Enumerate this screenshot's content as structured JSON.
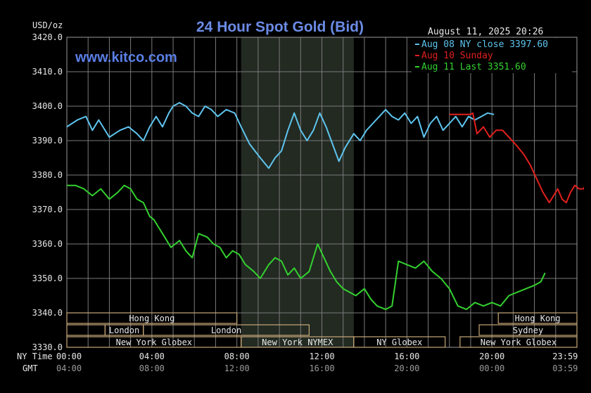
{
  "chart_data": {
    "type": "line",
    "title": "24 Hour Spot Gold (Bid)",
    "watermark": "www.kitco.com",
    "timestamp": "August 11, 2025 20:26",
    "ylabel": "USD/oz",
    "ylim": [
      3330,
      3420
    ],
    "y_ticks": [
      "3420.0",
      "3410.0",
      "3400.0",
      "3390.0",
      "3380.0",
      "3370.0",
      "3360.0",
      "3350.0",
      "3340.0",
      "3330.0"
    ],
    "y_tick_values": [
      3420,
      3410,
      3400,
      3390,
      3380,
      3370,
      3360,
      3350,
      3340,
      3330
    ],
    "xlim": [
      0,
      24
    ],
    "x_row_labels": [
      "NY Time",
      "GMT"
    ],
    "ny_ticks": [
      "00:00",
      "04:00",
      "08:00",
      "12:00",
      "16:00",
      "20:00",
      "23:59"
    ],
    "gmt_ticks": [
      "04:00",
      "08:00",
      "12:00",
      "16:00",
      "20:00",
      "00:00",
      "03:59"
    ],
    "x_tick_hours": [
      0,
      4,
      8,
      12,
      16,
      20,
      23.98
    ],
    "grid": true,
    "shaded_hours": [
      8.2,
      13.5
    ],
    "colors": {
      "blue": "#5ec4ee",
      "red": "#e0201c",
      "green": "#33d12f",
      "grid": "#7a7a7a",
      "axis_text": "#e8e8e8",
      "title": "#6b8be6",
      "session": "#c8a878"
    },
    "legend": [
      {
        "label": "Aug 08 NY close 3397.60",
        "color": "#5ec4ee"
      },
      {
        "label": "Aug 10 Sunday",
        "color": "#e0201c"
      },
      {
        "label": "Aug 11 Last 3351.60",
        "color": "#33d12f"
      }
    ],
    "series": [
      {
        "name": "Aug 08 NY close 3397.60",
        "color": "#5ec4ee",
        "points": [
          [
            0,
            3394
          ],
          [
            0.5,
            3396
          ],
          [
            0.9,
            3397
          ],
          [
            1.2,
            3393
          ],
          [
            1.5,
            3396
          ],
          [
            2.0,
            3391
          ],
          [
            2.5,
            3393
          ],
          [
            2.9,
            3394
          ],
          [
            3.3,
            3392
          ],
          [
            3.6,
            3390
          ],
          [
            3.9,
            3394
          ],
          [
            4.2,
            3397
          ],
          [
            4.5,
            3394
          ],
          [
            4.8,
            3398
          ],
          [
            5.0,
            3400
          ],
          [
            5.3,
            3401
          ],
          [
            5.6,
            3400
          ],
          [
            5.9,
            3398
          ],
          [
            6.2,
            3397
          ],
          [
            6.5,
            3400
          ],
          [
            6.8,
            3399
          ],
          [
            7.1,
            3397
          ],
          [
            7.5,
            3399
          ],
          [
            7.9,
            3398
          ],
          [
            8.2,
            3394
          ],
          [
            8.6,
            3389
          ],
          [
            9.1,
            3385
          ],
          [
            9.5,
            3382
          ],
          [
            9.8,
            3385
          ],
          [
            10.1,
            3387
          ],
          [
            10.4,
            3393
          ],
          [
            10.7,
            3398
          ],
          [
            11.0,
            3393
          ],
          [
            11.3,
            3390
          ],
          [
            11.6,
            3393
          ],
          [
            11.9,
            3398
          ],
          [
            12.2,
            3394
          ],
          [
            12.5,
            3389
          ],
          [
            12.8,
            3384
          ],
          [
            13.1,
            3388
          ],
          [
            13.5,
            3392
          ],
          [
            13.8,
            3390
          ],
          [
            14.1,
            3393
          ],
          [
            14.4,
            3395
          ],
          [
            14.7,
            3397
          ],
          [
            15.0,
            3399
          ],
          [
            15.3,
            3397
          ],
          [
            15.6,
            3396
          ],
          [
            15.9,
            3398
          ],
          [
            16.2,
            3395
          ],
          [
            16.5,
            3397
          ],
          [
            16.8,
            3391
          ],
          [
            17.1,
            3395
          ],
          [
            17.4,
            3397
          ],
          [
            17.7,
            3393
          ],
          [
            18.0,
            3395
          ],
          [
            18.3,
            3397
          ],
          [
            18.6,
            3394
          ],
          [
            18.9,
            3397
          ],
          [
            19.2,
            3396
          ],
          [
            19.5,
            3397
          ],
          [
            19.8,
            3398
          ],
          [
            20.1,
            3397.6
          ]
        ]
      },
      {
        "name": "Aug 10 Sunday",
        "color": "#e0201c",
        "points": [
          [
            18.0,
            3397.6
          ],
          [
            19.0,
            3397.6
          ],
          [
            19.1,
            3398
          ],
          [
            19.3,
            3392
          ],
          [
            19.6,
            3394
          ],
          [
            19.9,
            3391
          ],
          [
            20.2,
            3393
          ],
          [
            20.5,
            3393
          ],
          [
            20.8,
            3391
          ],
          [
            21.1,
            3389
          ],
          [
            21.5,
            3386
          ],
          [
            21.8,
            3383
          ],
          [
            22.1,
            3379
          ],
          [
            22.4,
            3375
          ],
          [
            22.7,
            3372
          ],
          [
            22.9,
            3374
          ],
          [
            23.1,
            3376
          ],
          [
            23.3,
            3373
          ],
          [
            23.5,
            3372
          ],
          [
            23.7,
            3375
          ],
          [
            23.9,
            3377
          ],
          [
            24.1,
            3376
          ],
          [
            24.3,
            3376
          ],
          [
            24.5,
            3378
          ],
          [
            24.8,
            3375
          ]
        ]
      },
      {
        "name": "Aug 11 Last 3351.60",
        "color": "#33d12f",
        "points": [
          [
            0,
            3377
          ],
          [
            0.4,
            3377
          ],
          [
            0.8,
            3376
          ],
          [
            1.2,
            3374
          ],
          [
            1.6,
            3376
          ],
          [
            2.0,
            3373
          ],
          [
            2.4,
            3375
          ],
          [
            2.7,
            3377
          ],
          [
            3.0,
            3376
          ],
          [
            3.3,
            3373
          ],
          [
            3.6,
            3372
          ],
          [
            3.9,
            3368
          ],
          [
            4.1,
            3367
          ],
          [
            4.3,
            3365
          ],
          [
            4.6,
            3362
          ],
          [
            4.9,
            3359
          ],
          [
            5.3,
            3361
          ],
          [
            5.6,
            3358
          ],
          [
            5.9,
            3356
          ],
          [
            6.2,
            3363
          ],
          [
            6.6,
            3362
          ],
          [
            6.9,
            3360
          ],
          [
            7.2,
            3359
          ],
          [
            7.5,
            3356
          ],
          [
            7.8,
            3358
          ],
          [
            8.1,
            3357
          ],
          [
            8.4,
            3354
          ],
          [
            8.8,
            3352
          ],
          [
            9.1,
            3350
          ],
          [
            9.5,
            3354
          ],
          [
            9.8,
            3356
          ],
          [
            10.1,
            3355
          ],
          [
            10.4,
            3351
          ],
          [
            10.7,
            3353
          ],
          [
            11.0,
            3350
          ],
          [
            11.4,
            3352
          ],
          [
            11.8,
            3360
          ],
          [
            12.1,
            3356
          ],
          [
            12.4,
            3352
          ],
          [
            12.7,
            3349
          ],
          [
            13.0,
            3347
          ],
          [
            13.3,
            3346
          ],
          [
            13.6,
            3345
          ],
          [
            14.0,
            3347
          ],
          [
            14.3,
            3344
          ],
          [
            14.6,
            3342
          ],
          [
            15.0,
            3341
          ],
          [
            15.3,
            3342
          ],
          [
            15.6,
            3355
          ],
          [
            16.0,
            3354
          ],
          [
            16.4,
            3353
          ],
          [
            16.8,
            3355
          ],
          [
            17.2,
            3352
          ],
          [
            17.6,
            3350
          ],
          [
            18.0,
            3347
          ],
          [
            18.4,
            3342
          ],
          [
            18.8,
            3341
          ],
          [
            19.2,
            3343
          ],
          [
            19.6,
            3342
          ],
          [
            20.0,
            3343
          ],
          [
            20.4,
            3342
          ],
          [
            20.8,
            3345
          ],
          [
            21.2,
            3346
          ],
          [
            21.6,
            3347
          ],
          [
            22.0,
            3348
          ],
          [
            22.3,
            3349
          ],
          [
            22.5,
            3351.6
          ]
        ]
      }
    ],
    "sessions": {
      "row1": [
        {
          "label": "Hong Kong",
          "start": 0,
          "end": 8
        },
        {
          "label": "Hong Kong",
          "start": 20.3,
          "end": 24
        }
      ],
      "row2": [
        {
          "label": "",
          "start": 0,
          "end": 1.8
        },
        {
          "label": "London",
          "start": 1.8,
          "end": 3.6
        },
        {
          "label": "London",
          "start": 3.6,
          "end": 11.4
        },
        {
          "label": "Sydney",
          "start": 19.4,
          "end": 24
        }
      ],
      "row3": [
        {
          "label": "New York Globex",
          "start": 0,
          "end": 8.2
        },
        {
          "label": "New York NYMEX",
          "start": 8.2,
          "end": 13.5
        },
        {
          "label": "NY Globex",
          "start": 13.5,
          "end": 17.8
        },
        {
          "label": "New York Globex",
          "start": 18.5,
          "end": 24
        }
      ]
    }
  }
}
